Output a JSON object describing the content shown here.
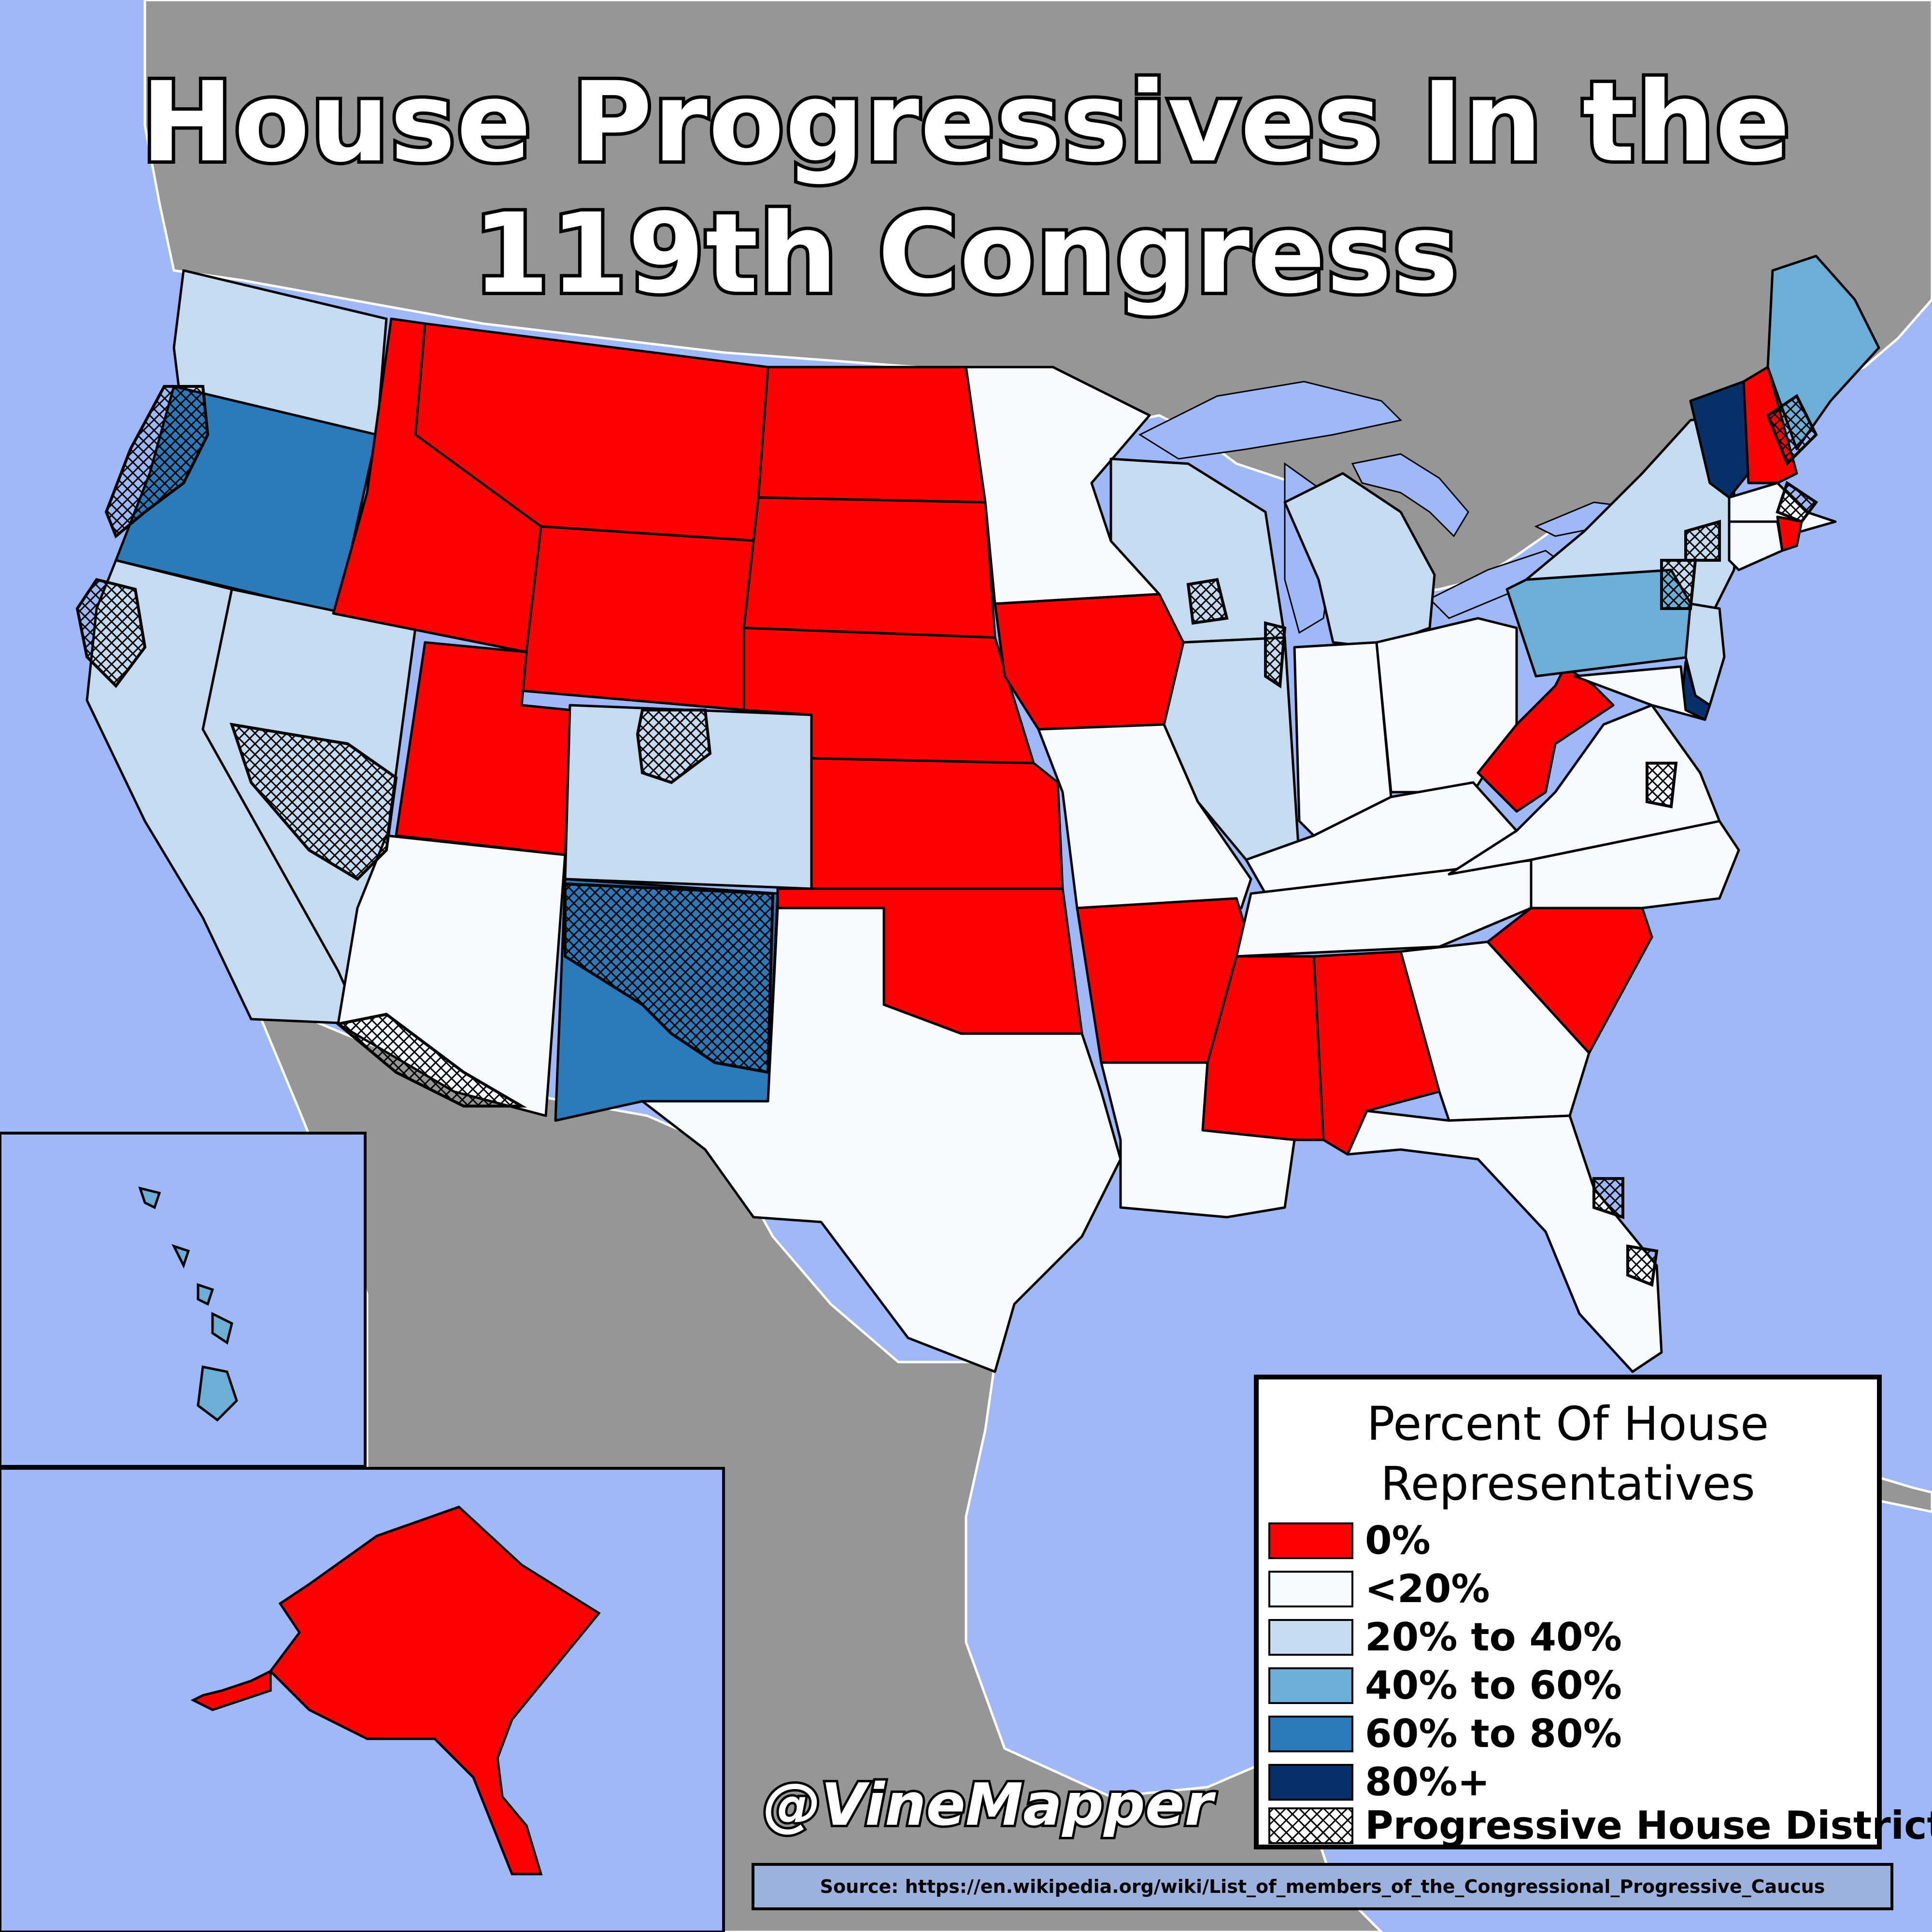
{
  "title": {
    "line1": "House Progressives In the",
    "line2": "119th Congress"
  },
  "legend": {
    "title_line1": "Percent Of House",
    "title_line2": "Representatives",
    "items": [
      {
        "label": "0%",
        "color": "#ff0000"
      },
      {
        "label": "<20%",
        "color": "#f7fbff"
      },
      {
        "label": "20% to 40%",
        "color": "#c6dbef"
      },
      {
        "label": "40% to 60%",
        "color": "#6baed6"
      },
      {
        "label": "60% to 80%",
        "color": "#2b7bba"
      },
      {
        "label": "80%+",
        "color": "#08306b"
      },
      {
        "label": "Progressive House District",
        "pattern": "crosshatch"
      }
    ]
  },
  "handle": "@VineMapper",
  "source": "Source: https://en.wikipedia.org/wiki/List_of_members_of_the_Congressional_Progressive_Caucus",
  "colors": {
    "ocean": "#9fb9f8",
    "land_outside": "#969696",
    "zero": "#ff0000",
    "lt20": "#f7fbff",
    "20to40": "#c6dbef",
    "40to60": "#6baed6",
    "60to80": "#2b7bba",
    "80plus": "#08306b"
  },
  "states": {
    "WA": "20to40",
    "OR": "60to80",
    "CA": "20to40",
    "NV": "20to40",
    "ID": "zero",
    "MT": "zero",
    "WY": "zero",
    "UT": "zero",
    "AZ": "lt20",
    "CO": "20to40",
    "NM": "60to80",
    "ND": "zero",
    "SD": "zero",
    "NE": "zero",
    "KS": "zero",
    "OK": "zero",
    "TX": "lt20",
    "MN": "lt20",
    "IA": "zero",
    "MO": "lt20",
    "AR": "zero",
    "LA": "lt20",
    "WI": "20to40",
    "IL": "20to40",
    "MI": "20to40",
    "IN": "lt20",
    "OH": "lt20",
    "KY": "lt20",
    "TN": "lt20",
    "MS": "zero",
    "AL": "zero",
    "GA": "lt20",
    "FL": "lt20",
    "SC": "zero",
    "NC": "lt20",
    "VA": "lt20",
    "WV": "zero",
    "PA": "40to60",
    "NY": "20to40",
    "VT": "80plus",
    "NH": "zero",
    "ME": "40to60",
    "MA": "lt20",
    "RI": "zero",
    "CT": "lt20",
    "NJ": "20to40",
    "DE": "80plus",
    "MD": "lt20",
    "HI": "40to60",
    "AK": "zero"
  }
}
